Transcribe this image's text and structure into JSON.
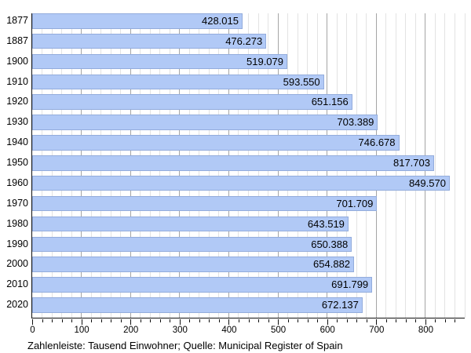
{
  "chart_data": {
    "type": "bar",
    "orientation": "horizontal",
    "title": "",
    "categories": [
      "1877",
      "1887",
      "1900",
      "1910",
      "1920",
      "1930",
      "1940",
      "1950",
      "1960",
      "1970",
      "1980",
      "1990",
      "2000",
      "2010",
      "2020"
    ],
    "values": [
      428.015,
      476.273,
      519.079,
      593.55,
      651.156,
      703.389,
      746.678,
      817.703,
      849.57,
      701.709,
      643.519,
      650.388,
      654.882,
      691.799,
      672.137
    ],
    "value_labels": [
      "428.015",
      "476.273",
      "519.079",
      "593.550",
      "651.156",
      "703.389",
      "746.678",
      "817.703",
      "849.570",
      "701.709",
      "643.519",
      "650.388",
      "654.882",
      "691.799",
      "672.137"
    ],
    "x_tick_labels": [
      "0",
      "100",
      "200",
      "300",
      "400",
      "500",
      "600",
      "700",
      "800"
    ],
    "x_tick_values": [
      0,
      100,
      200,
      300,
      400,
      500,
      600,
      700,
      800
    ],
    "xlim": [
      0,
      880
    ],
    "minor_step": 20,
    "major_step": 100,
    "tick_step": 20,
    "tick_max": 860,
    "grid": true,
    "legend": "none",
    "unit_note": "values are thousands of inhabitants",
    "caption": "Zahlenleiste: Tausend Einwohner; Quelle: Municipal Register of Spain",
    "colors": {
      "background": "#ffffff",
      "bar_fill": "#b1c9f6",
      "bar_border": "#93acdc",
      "minor_grid": "#e3e3e3",
      "major_grid": "#a5a5a5",
      "axis": "#111111",
      "text": "#000000"
    }
  }
}
